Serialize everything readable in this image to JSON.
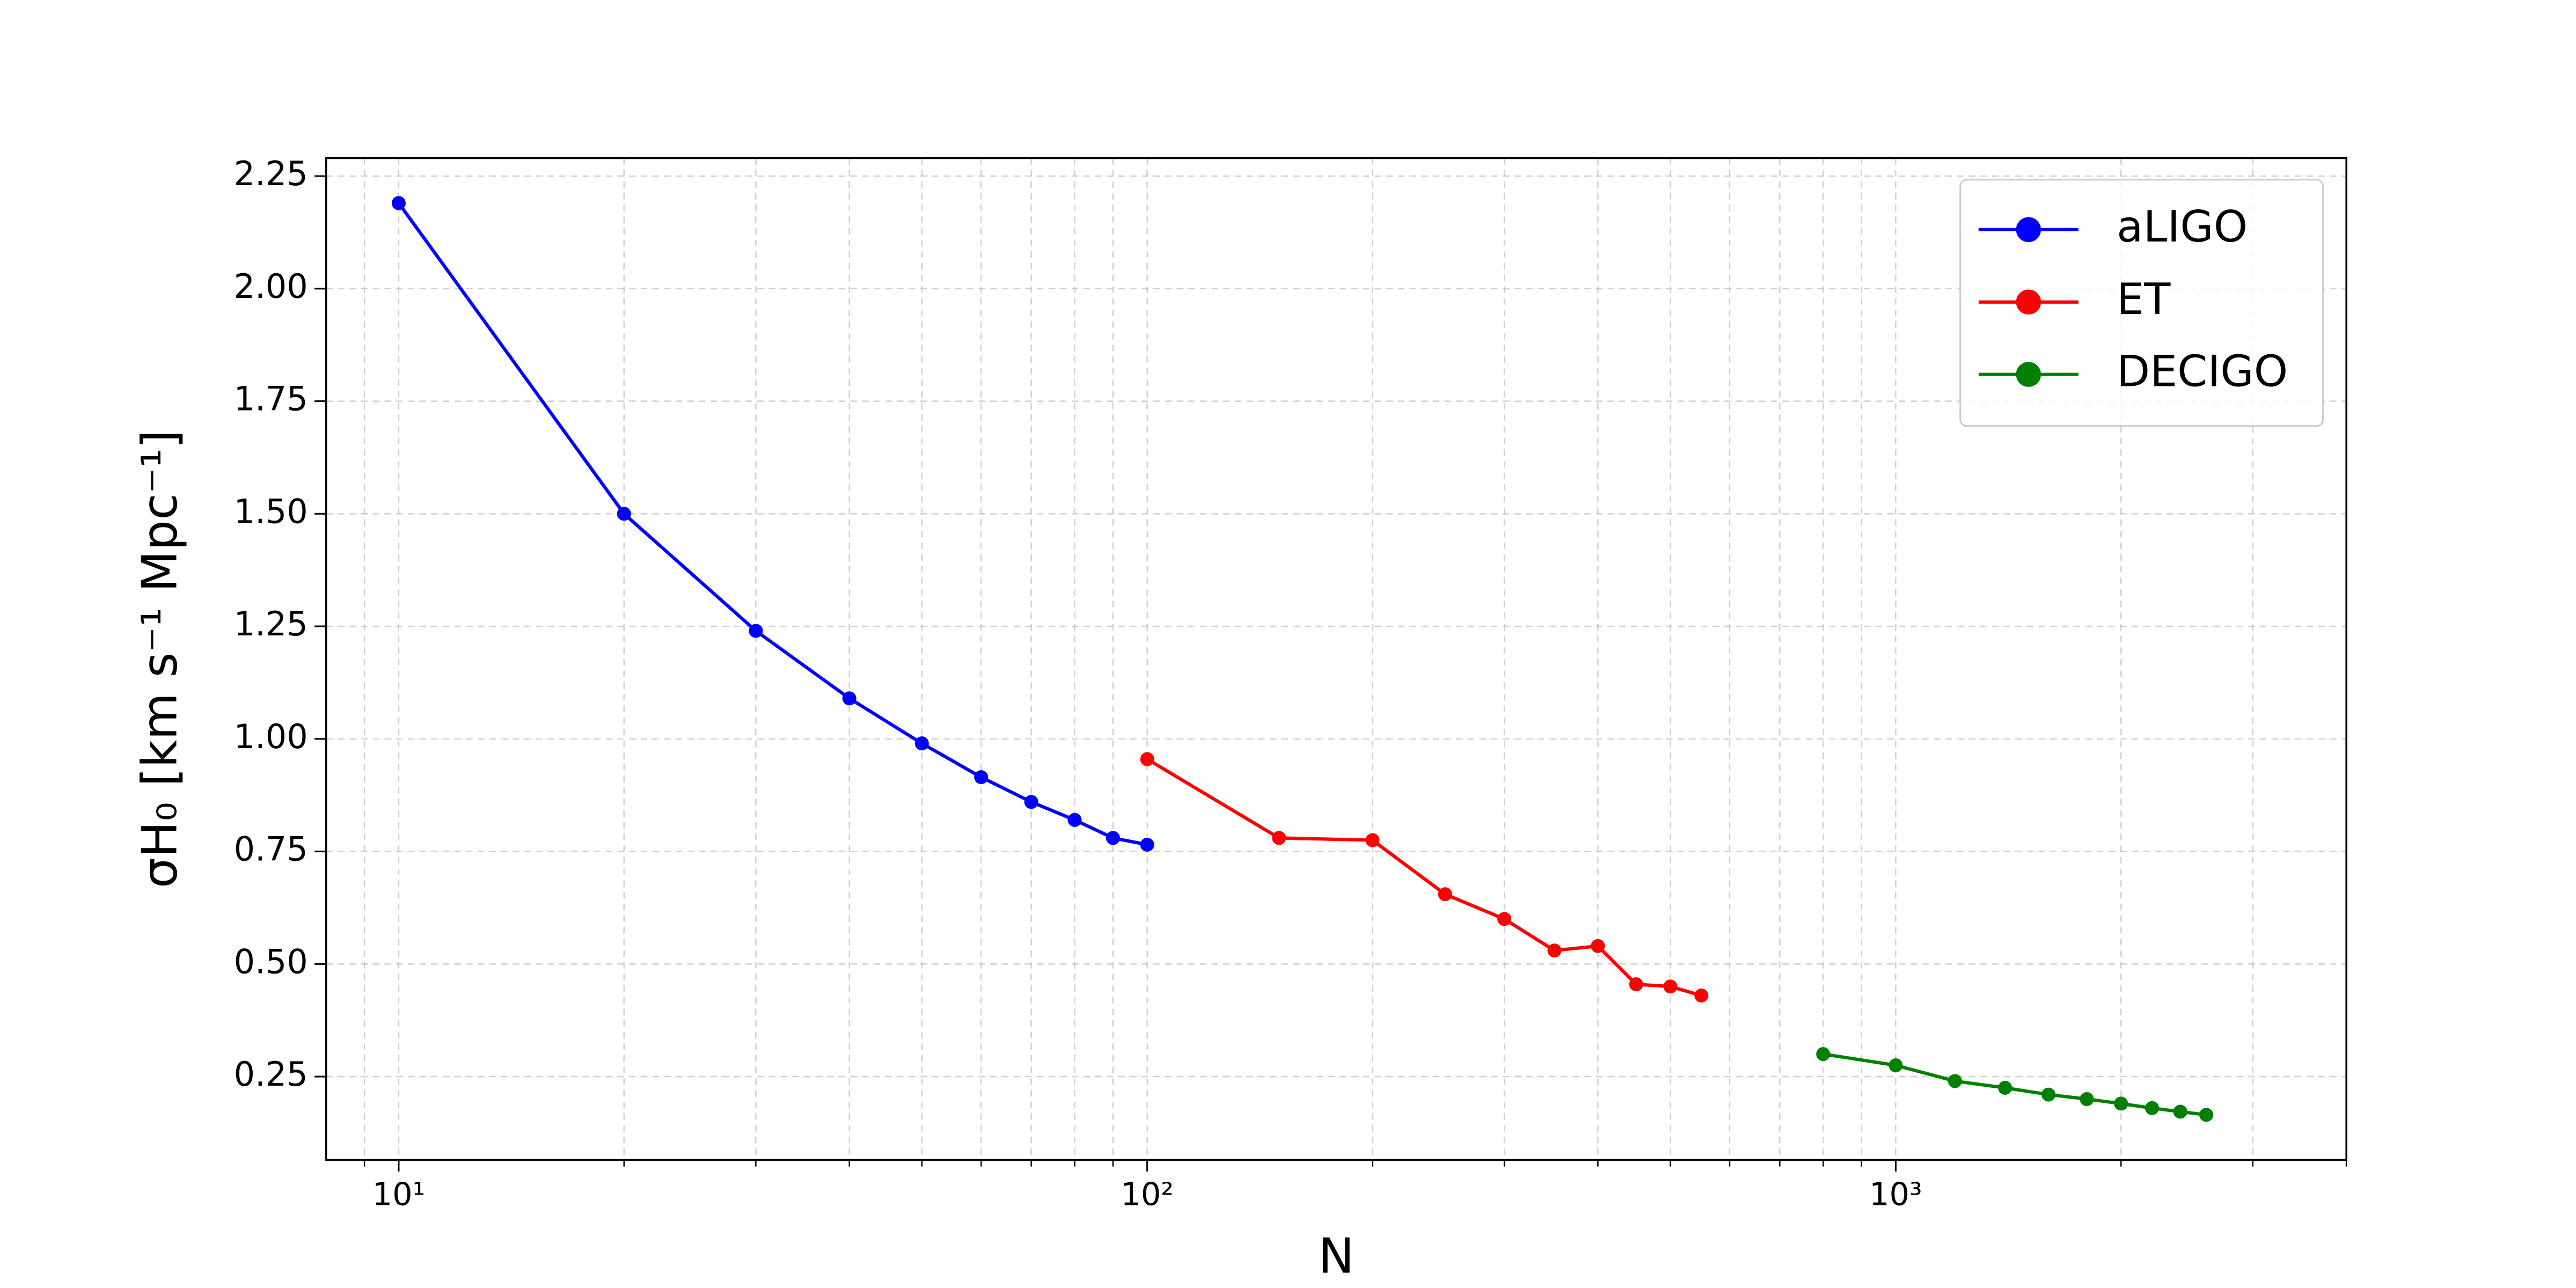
{
  "chart_data": {
    "type": "line",
    "xlabel": "N",
    "ylabel": "σH₀ [km s⁻¹ Mpc⁻¹]",
    "xscale": "log",
    "xlim": [
      8,
      4000
    ],
    "ylim": [
      0.065,
      2.29
    ],
    "xticks": [
      {
        "value": 10,
        "label": "10¹"
      },
      {
        "value": 100,
        "label": "10²"
      },
      {
        "value": 1000,
        "label": "10³"
      }
    ],
    "xminorticks": [
      9,
      20,
      30,
      40,
      50,
      60,
      70,
      80,
      90,
      200,
      300,
      400,
      500,
      600,
      700,
      800,
      900,
      2000,
      3000,
      4000
    ],
    "yticks": [
      0.25,
      {
        "value": 0.5,
        "label": "0.50"
      },
      0.75,
      {
        "value": 1.0,
        "label": "1.00"
      },
      1.25,
      {
        "value": 1.5,
        "label": "1.50"
      },
      1.75,
      {
        "value": 2.0,
        "label": "2.00"
      },
      2.25
    ],
    "grid": true,
    "legend": "upper right",
    "series": [
      {
        "name": "aLIGO",
        "color": "#0000ff",
        "x": [
          10,
          20,
          30,
          40,
          50,
          60,
          70,
          80,
          90,
          100
        ],
        "values": [
          2.19,
          1.5,
          1.24,
          1.09,
          0.99,
          0.915,
          0.86,
          0.82,
          0.78,
          0.765
        ]
      },
      {
        "name": "ET",
        "color": "#ff0000",
        "x": [
          100,
          150,
          200,
          250,
          300,
          350,
          400,
          450,
          500,
          550
        ],
        "values": [
          0.955,
          0.78,
          0.775,
          0.655,
          0.6,
          0.53,
          0.54,
          0.455,
          0.45,
          0.43
        ]
      },
      {
        "name": "DECIGO",
        "color": "#008000",
        "x": [
          800,
          1000,
          1200,
          1400,
          1600,
          1800,
          2000,
          2200,
          2400,
          2600
        ],
        "values": [
          0.3,
          0.275,
          0.24,
          0.225,
          0.21,
          0.2,
          0.19,
          0.18,
          0.172,
          0.165
        ]
      }
    ]
  }
}
